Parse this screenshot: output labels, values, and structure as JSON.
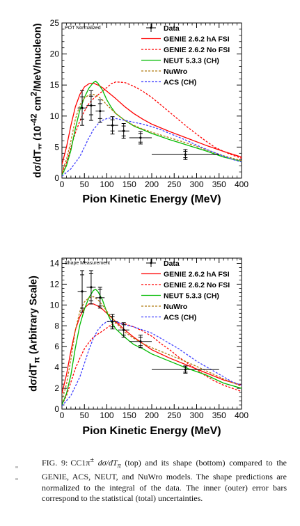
{
  "chart_data": [
    {
      "type": "line",
      "panel_label": "POT Normalized",
      "ylabel_html": "dσ/dT<sub>π</sub> (10<sup>-42</sup> cm<sup>2</sup>/MeV/nucleon)",
      "xlabel": "Pion Kinetic Energy (MeV)",
      "xlim": [
        0,
        400
      ],
      "ylim": [
        0,
        25
      ],
      "xticks": [
        0,
        50,
        100,
        150,
        200,
        250,
        300,
        350,
        400
      ],
      "yticks": [
        0,
        5,
        10,
        15,
        20,
        25
      ],
      "legend_position": "top-right",
      "series": [
        {
          "name": "GENIE 2.6.2 hA FSI",
          "color": "#ff0000",
          "dash": "solid",
          "x": [
            0,
            10,
            20,
            30,
            40,
            50,
            60,
            70,
            80,
            90,
            100,
            120,
            140,
            160,
            180,
            200,
            240,
            280,
            320,
            360,
            400
          ],
          "y": [
            2.2,
            5,
            8.5,
            11.5,
            13.5,
            14.7,
            15.2,
            15.3,
            15.0,
            14.6,
            14.0,
            12.8,
            11.5,
            10.4,
            9.5,
            8.7,
            7.5,
            6.4,
            5.3,
            4.3,
            3.4
          ]
        },
        {
          "name": "GENIE 2.6.2 No FSI",
          "color": "#ff0000",
          "dash": "dotted",
          "x": [
            0,
            10,
            20,
            30,
            40,
            50,
            60,
            70,
            80,
            90,
            100,
            110,
            120,
            140,
            160,
            180,
            200,
            220,
            240,
            260,
            280,
            300,
            320,
            340,
            360,
            380,
            400
          ],
          "y": [
            0.8,
            2.5,
            5,
            7.3,
            9.2,
            10.8,
            12.0,
            12.8,
            13.4,
            14.0,
            14.6,
            15.2,
            15.5,
            15.4,
            14.8,
            14.0,
            13.0,
            11.8,
            10.6,
            9.4,
            8.2,
            7.1,
            6.0,
            5.0,
            4.3,
            3.7,
            3.2
          ]
        },
        {
          "name": "NEUT 5.3.3 (CH)",
          "color": "#00bb00",
          "dash": "solid",
          "x": [
            0,
            10,
            20,
            30,
            40,
            50,
            60,
            70,
            75,
            80,
            90,
            100,
            110,
            120,
            140,
            160,
            180,
            200,
            240,
            280,
            320,
            360,
            400
          ],
          "y": [
            0.5,
            2,
            4.5,
            8,
            11,
            13,
            14.5,
            15.4,
            15.6,
            15.3,
            14.2,
            12.6,
            11.4,
            10.4,
            9.3,
            8.4,
            7.8,
            7.2,
            6.2,
            5.3,
            4.4,
            3.4,
            2.7
          ]
        },
        {
          "name": "NuWro",
          "color": "#b07a10",
          "dash": "dotted",
          "x": [
            0,
            10,
            20,
            30,
            40,
            50,
            60,
            70,
            80,
            90,
            100,
            120,
            140,
            160,
            180,
            200,
            240,
            280,
            320,
            360,
            400
          ],
          "y": [
            1,
            3,
            6,
            9.5,
            11.8,
            12.9,
            13.4,
            13.5,
            13.2,
            12.6,
            11.8,
            10.4,
            9.3,
            8.5,
            7.9,
            7.4,
            6.5,
            5.6,
            4.6,
            3.6,
            2.8
          ]
        },
        {
          "name": "ACS (CH)",
          "color": "#4040ff",
          "dash": "dotted",
          "x": [
            0,
            20,
            40,
            50,
            60,
            70,
            80,
            90,
            100,
            110,
            120,
            140,
            160,
            180,
            200,
            220,
            240,
            260,
            280,
            300,
            340,
            380,
            400
          ],
          "y": [
            0.3,
            1.5,
            3.5,
            5,
            6.5,
            7.8,
            8.7,
            9.3,
            9.6,
            9.7,
            9.6,
            9.3,
            9.0,
            8.7,
            8.3,
            7.8,
            7.2,
            6.6,
            6.0,
            5.3,
            4.1,
            3.0,
            2.6
          ]
        }
      ],
      "data_points": {
        "name": "Data",
        "x": [
          45,
          65,
          85,
          112.5,
          137.5,
          175,
          275
        ],
        "y": [
          11.3,
          11.7,
          10.8,
          8.5,
          7.6,
          6.5,
          3.8
        ],
        "xerr": [
          10,
          10,
          10,
          12.5,
          12.5,
          25,
          75
        ],
        "yerr_in": [
          1.8,
          1.5,
          1.2,
          0.9,
          0.8,
          0.7,
          0.5
        ],
        "yerr_out": [
          2.8,
          2.4,
          1.8,
          1.4,
          1.2,
          1.0,
          0.8
        ]
      }
    },
    {
      "type": "line",
      "panel_label": "Shape Measurement",
      "ylabel_html": "dσ/dT<sub>π</sub> (Arbitrary Scale)",
      "xlabel": "Pion Kinetic Energy (MeV)",
      "xlim": [
        0,
        400
      ],
      "ylim": [
        0,
        14.5
      ],
      "xticks": [
        0,
        50,
        100,
        150,
        200,
        250,
        300,
        350,
        400
      ],
      "yticks": [
        0,
        2,
        4,
        6,
        8,
        10,
        12,
        14
      ],
      "legend_position": "top-right",
      "series": [
        {
          "name": "GENIE 2.6.2 hA FSI",
          "color": "#ff0000",
          "dash": "solid",
          "x": [
            0,
            10,
            20,
            30,
            40,
            50,
            60,
            70,
            80,
            90,
            100,
            120,
            140,
            160,
            180,
            200,
            240,
            280,
            320,
            360,
            400
          ],
          "y": [
            1.5,
            3.3,
            5.6,
            7.6,
            8.9,
            9.7,
            10.1,
            10.1,
            9.9,
            9.6,
            9.2,
            8.4,
            7.6,
            6.9,
            6.3,
            5.7,
            4.9,
            4.2,
            3.5,
            2.8,
            2.3
          ]
        },
        {
          "name": "GENIE 2.6.2 No FSI",
          "color": "#ff0000",
          "dash": "dotted",
          "x": [
            0,
            10,
            20,
            30,
            40,
            50,
            60,
            70,
            80,
            90,
            100,
            110,
            120,
            140,
            160,
            180,
            200,
            220,
            240,
            260,
            280,
            300,
            320,
            340,
            360,
            380,
            400
          ],
          "y": [
            0.4,
            1.3,
            2.6,
            3.9,
            4.9,
            5.8,
            6.4,
            6.9,
            7.2,
            7.5,
            7.8,
            8.1,
            8.3,
            8.2,
            7.9,
            7.5,
            7.0,
            6.3,
            5.7,
            5.0,
            4.4,
            3.8,
            3.2,
            2.7,
            2.3,
            2.0,
            1.7
          ]
        },
        {
          "name": "NEUT 5.3.3 (CH)",
          "color": "#00bb00",
          "dash": "solid",
          "x": [
            0,
            10,
            20,
            30,
            40,
            50,
            60,
            70,
            75,
            80,
            90,
            100,
            110,
            120,
            140,
            160,
            180,
            200,
            240,
            280,
            320,
            360,
            400
          ],
          "y": [
            0.4,
            1.5,
            3.3,
            5.9,
            8.1,
            9.6,
            10.7,
            11.4,
            11.5,
            11.3,
            10.5,
            9.3,
            8.4,
            7.7,
            6.9,
            6.2,
            5.8,
            5.3,
            4.6,
            3.9,
            3.3,
            2.5,
            2.0
          ]
        },
        {
          "name": "NuWro",
          "color": "#b07a10",
          "dash": "dotted",
          "x": [
            0,
            10,
            20,
            30,
            40,
            50,
            60,
            70,
            80,
            90,
            100,
            120,
            140,
            160,
            180,
            200,
            240,
            280,
            320,
            360,
            400
          ],
          "y": [
            0.8,
            2.4,
            4.8,
            7.6,
            9.4,
            10.3,
            10.7,
            10.8,
            10.5,
            10.0,
            9.4,
            8.3,
            7.4,
            6.8,
            6.3,
            5.9,
            5.2,
            4.5,
            3.7,
            2.9,
            2.2
          ]
        },
        {
          "name": "ACS (CH)",
          "color": "#4040ff",
          "dash": "dotted",
          "x": [
            0,
            20,
            40,
            50,
            60,
            70,
            80,
            90,
            100,
            110,
            120,
            140,
            160,
            180,
            200,
            220,
            240,
            260,
            280,
            300,
            340,
            380,
            400
          ],
          "y": [
            0.3,
            1.3,
            3.1,
            4.4,
            5.7,
            6.8,
            7.6,
            8.1,
            8.4,
            8.5,
            8.4,
            8.1,
            7.9,
            7.6,
            7.3,
            6.8,
            6.3,
            5.8,
            5.2,
            4.6,
            3.6,
            2.6,
            2.3
          ]
        }
      ],
      "data_points": {
        "name": "Data",
        "x": [
          45,
          65,
          85,
          112.5,
          137.5,
          175,
          275
        ],
        "y": [
          11.3,
          11.7,
          10.7,
          8.4,
          7.6,
          6.5,
          3.8
        ],
        "xerr": [
          10,
          10,
          10,
          12.5,
          12.5,
          25,
          75
        ],
        "yerr_in": [
          1.6,
          1.3,
          0.8,
          0.5,
          0.5,
          0.4,
          0.25
        ],
        "yerr_out": [
          2.0,
          1.6,
          1.0,
          0.7,
          0.7,
          0.6,
          0.35
        ]
      }
    }
  ],
  "caption": {
    "label": "FIG. 9:",
    "html": "CC1π<sup>±</sup> <i>dσ/dT<sub>π</sub></i> (top) and its shape (bottom) compared to the GENIE, ACS, NEUT, and NuWro models. The shape predictions are normalized to the integral of the data. The inner (outer) error bars correspond to the statistical (total) uncertainties."
  }
}
